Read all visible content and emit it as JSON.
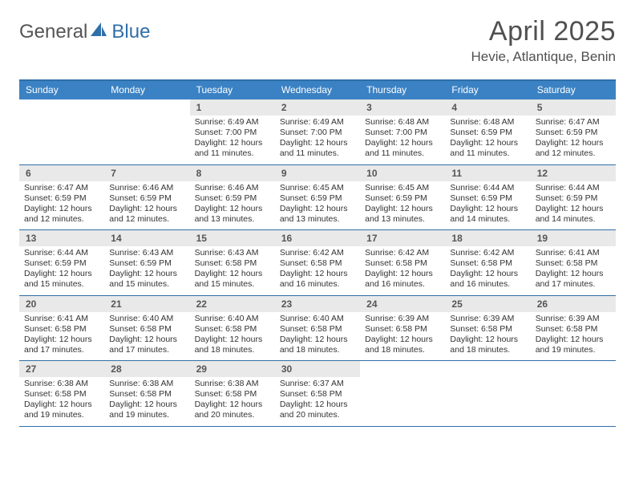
{
  "logo": {
    "text1": "General",
    "text2": "Blue"
  },
  "title": "April 2025",
  "subtitle": "Hevie, Atlantique, Benin",
  "colors": {
    "header_bg": "#3b82c4",
    "header_border": "#2f6fa8",
    "daynum_bg": "#e9e9e9",
    "text": "#333333",
    "title_text": "#505050"
  },
  "day_headers": [
    "Sunday",
    "Monday",
    "Tuesday",
    "Wednesday",
    "Thursday",
    "Friday",
    "Saturday"
  ],
  "weeks": [
    [
      null,
      null,
      {
        "n": "1",
        "sr": "6:49 AM",
        "ss": "7:00 PM",
        "dl": "12 hours and 11 minutes."
      },
      {
        "n": "2",
        "sr": "6:49 AM",
        "ss": "7:00 PM",
        "dl": "12 hours and 11 minutes."
      },
      {
        "n": "3",
        "sr": "6:48 AM",
        "ss": "7:00 PM",
        "dl": "12 hours and 11 minutes."
      },
      {
        "n": "4",
        "sr": "6:48 AM",
        "ss": "6:59 PM",
        "dl": "12 hours and 11 minutes."
      },
      {
        "n": "5",
        "sr": "6:47 AM",
        "ss": "6:59 PM",
        "dl": "12 hours and 12 minutes."
      }
    ],
    [
      {
        "n": "6",
        "sr": "6:47 AM",
        "ss": "6:59 PM",
        "dl": "12 hours and 12 minutes."
      },
      {
        "n": "7",
        "sr": "6:46 AM",
        "ss": "6:59 PM",
        "dl": "12 hours and 12 minutes."
      },
      {
        "n": "8",
        "sr": "6:46 AM",
        "ss": "6:59 PM",
        "dl": "12 hours and 13 minutes."
      },
      {
        "n": "9",
        "sr": "6:45 AM",
        "ss": "6:59 PM",
        "dl": "12 hours and 13 minutes."
      },
      {
        "n": "10",
        "sr": "6:45 AM",
        "ss": "6:59 PM",
        "dl": "12 hours and 13 minutes."
      },
      {
        "n": "11",
        "sr": "6:44 AM",
        "ss": "6:59 PM",
        "dl": "12 hours and 14 minutes."
      },
      {
        "n": "12",
        "sr": "6:44 AM",
        "ss": "6:59 PM",
        "dl": "12 hours and 14 minutes."
      }
    ],
    [
      {
        "n": "13",
        "sr": "6:44 AM",
        "ss": "6:59 PM",
        "dl": "12 hours and 15 minutes."
      },
      {
        "n": "14",
        "sr": "6:43 AM",
        "ss": "6:59 PM",
        "dl": "12 hours and 15 minutes."
      },
      {
        "n": "15",
        "sr": "6:43 AM",
        "ss": "6:58 PM",
        "dl": "12 hours and 15 minutes."
      },
      {
        "n": "16",
        "sr": "6:42 AM",
        "ss": "6:58 PM",
        "dl": "12 hours and 16 minutes."
      },
      {
        "n": "17",
        "sr": "6:42 AM",
        "ss": "6:58 PM",
        "dl": "12 hours and 16 minutes."
      },
      {
        "n": "18",
        "sr": "6:42 AM",
        "ss": "6:58 PM",
        "dl": "12 hours and 16 minutes."
      },
      {
        "n": "19",
        "sr": "6:41 AM",
        "ss": "6:58 PM",
        "dl": "12 hours and 17 minutes."
      }
    ],
    [
      {
        "n": "20",
        "sr": "6:41 AM",
        "ss": "6:58 PM",
        "dl": "12 hours and 17 minutes."
      },
      {
        "n": "21",
        "sr": "6:40 AM",
        "ss": "6:58 PM",
        "dl": "12 hours and 17 minutes."
      },
      {
        "n": "22",
        "sr": "6:40 AM",
        "ss": "6:58 PM",
        "dl": "12 hours and 18 minutes."
      },
      {
        "n": "23",
        "sr": "6:40 AM",
        "ss": "6:58 PM",
        "dl": "12 hours and 18 minutes."
      },
      {
        "n": "24",
        "sr": "6:39 AM",
        "ss": "6:58 PM",
        "dl": "12 hours and 18 minutes."
      },
      {
        "n": "25",
        "sr": "6:39 AM",
        "ss": "6:58 PM",
        "dl": "12 hours and 18 minutes."
      },
      {
        "n": "26",
        "sr": "6:39 AM",
        "ss": "6:58 PM",
        "dl": "12 hours and 19 minutes."
      }
    ],
    [
      {
        "n": "27",
        "sr": "6:38 AM",
        "ss": "6:58 PM",
        "dl": "12 hours and 19 minutes."
      },
      {
        "n": "28",
        "sr": "6:38 AM",
        "ss": "6:58 PM",
        "dl": "12 hours and 19 minutes."
      },
      {
        "n": "29",
        "sr": "6:38 AM",
        "ss": "6:58 PM",
        "dl": "12 hours and 20 minutes."
      },
      {
        "n": "30",
        "sr": "6:37 AM",
        "ss": "6:58 PM",
        "dl": "12 hours and 20 minutes."
      },
      null,
      null,
      null
    ]
  ],
  "labels": {
    "sunrise": "Sunrise:",
    "sunset": "Sunset:",
    "daylight": "Daylight:"
  }
}
